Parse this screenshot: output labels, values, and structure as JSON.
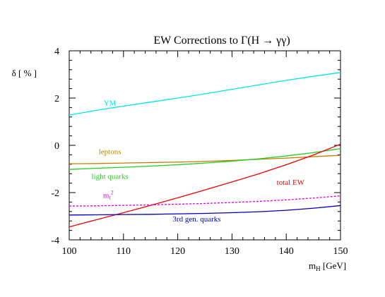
{
  "chart_data": {
    "type": "line",
    "title": "EW Corrections to Γ(H → γγ)",
    "ylabel": "δ [ % ]",
    "xlabel_main": "m",
    "xlabel_sub": "H",
    "xlabel_unit": " [GeV]",
    "xlim": [
      100,
      150
    ],
    "ylim": [
      -4,
      4
    ],
    "x_ticks": [
      100,
      110,
      120,
      130,
      140,
      150
    ],
    "y_ticks": [
      4,
      2,
      0,
      -2,
      -4
    ],
    "grid": false,
    "series": [
      {
        "name": "YM",
        "color": "#00e5e5",
        "x": [
          100,
          105,
          110,
          115,
          120,
          125,
          130,
          135,
          140,
          145,
          150
        ],
        "y": [
          1.28,
          1.48,
          1.66,
          1.83,
          2.0,
          2.18,
          2.37,
          2.56,
          2.75,
          2.92,
          3.08
        ]
      },
      {
        "name": "leptons",
        "color": "#c08000",
        "x": [
          100,
          105,
          110,
          115,
          120,
          125,
          130,
          135,
          140,
          145,
          150
        ],
        "y": [
          -0.78,
          -0.77,
          -0.75,
          -0.73,
          -0.71,
          -0.68,
          -0.64,
          -0.59,
          -0.54,
          -0.48,
          -0.42
        ]
      },
      {
        "name": "light quarks",
        "color": "#22cc22",
        "x": [
          100,
          105,
          110,
          115,
          120,
          125,
          130,
          135,
          140,
          145,
          150
        ],
        "y": [
          -1.02,
          -0.97,
          -0.93,
          -0.88,
          -0.82,
          -0.75,
          -0.67,
          -0.57,
          -0.45,
          -0.31,
          -0.14
        ]
      },
      {
        "name": "total EW",
        "color": "#ee0000",
        "x": [
          100,
          105,
          110,
          115,
          120,
          125,
          130,
          135,
          140,
          145,
          150
        ],
        "y": [
          -3.45,
          -3.15,
          -2.85,
          -2.54,
          -2.22,
          -1.89,
          -1.55,
          -1.2,
          -0.82,
          -0.41,
          0.05
        ]
      },
      {
        "name": "m_t^2",
        "label_main": "m",
        "label_sub": "t",
        "label_sup": "2",
        "color": "#e000e0",
        "dashed": true,
        "x": [
          100,
          105,
          110,
          115,
          120,
          125,
          130,
          135,
          140,
          145,
          150
        ],
        "y": [
          -2.57,
          -2.56,
          -2.54,
          -2.52,
          -2.49,
          -2.46,
          -2.42,
          -2.37,
          -2.31,
          -2.23,
          -2.14
        ]
      },
      {
        "name": "3rd gen. quarks",
        "color": "#0000c0",
        "x": [
          100,
          105,
          110,
          115,
          120,
          125,
          130,
          135,
          140,
          145,
          150
        ],
        "y": [
          -2.95,
          -2.94,
          -2.93,
          -2.92,
          -2.9,
          -2.88,
          -2.85,
          -2.81,
          -2.75,
          -2.66,
          -2.55
        ]
      }
    ]
  }
}
